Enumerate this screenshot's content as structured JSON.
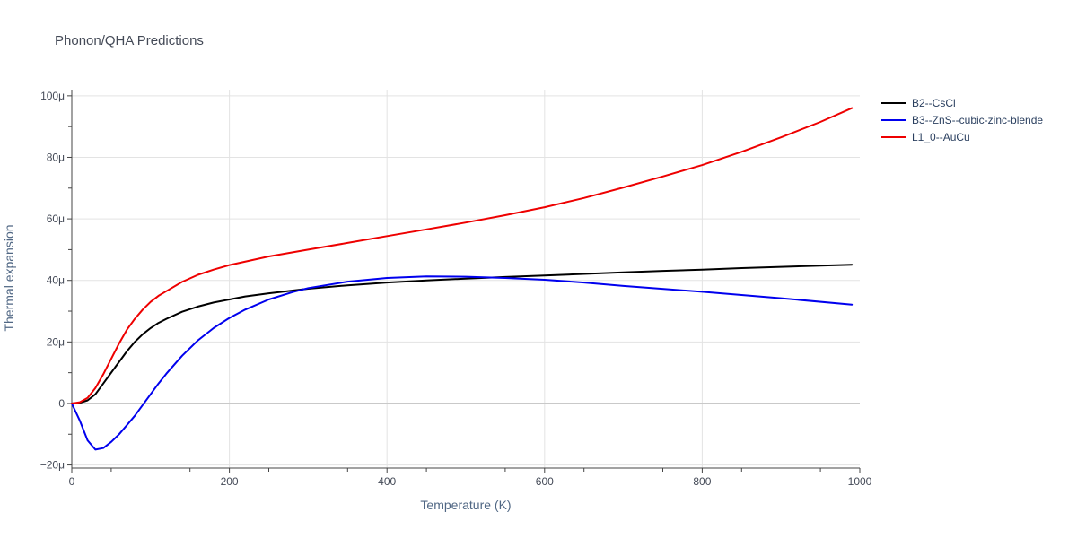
{
  "chart_data": {
    "type": "line",
    "title": "Phonon/QHA Predictions",
    "xlabel": "Temperature (K)",
    "ylabel": "Thermal expansion",
    "xlim": [
      0,
      1000
    ],
    "ylim": [
      -21,
      102
    ],
    "x_ticks": [
      0,
      200,
      400,
      600,
      800,
      1000
    ],
    "x_tick_labels": [
      "0",
      "200",
      "400",
      "600",
      "800",
      "1000"
    ],
    "y_ticks": [
      -20,
      0,
      20,
      40,
      60,
      80,
      100
    ],
    "y_tick_labels": [
      "−20μ",
      "0",
      "20μ",
      "40μ",
      "60μ",
      "80μ",
      "100μ"
    ],
    "grid": true,
    "legend_position": "top-right",
    "series": [
      {
        "name": "B2--CsCl",
        "color": "#000000",
        "x": [
          0,
          10,
          20,
          30,
          40,
          50,
          60,
          70,
          80,
          90,
          100,
          110,
          120,
          140,
          160,
          180,
          200,
          220,
          250,
          300,
          350,
          400,
          450,
          500,
          550,
          600,
          650,
          700,
          750,
          800,
          850,
          900,
          950,
          990
        ],
        "y": [
          0,
          0.2,
          1,
          3,
          6.5,
          10,
          13.5,
          17,
          20,
          22.5,
          24.5,
          26.2,
          27.5,
          29.8,
          31.5,
          32.8,
          33.8,
          34.8,
          35.8,
          37.3,
          38.4,
          39.3,
          40,
          40.6,
          41.1,
          41.6,
          42.1,
          42.6,
          43.1,
          43.5,
          44,
          44.4,
          44.8,
          45.1
        ]
      },
      {
        "name": "B3--ZnS--cubic-zinc-blende",
        "color": "#0000ee",
        "x": [
          0,
          10,
          20,
          30,
          40,
          50,
          60,
          70,
          80,
          90,
          100,
          110,
          120,
          140,
          160,
          180,
          200,
          220,
          250,
          280,
          300,
          350,
          400,
          450,
          500,
          550,
          600,
          650,
          700,
          800,
          900,
          990
        ],
        "y": [
          0,
          -5.5,
          -12,
          -15,
          -14.5,
          -12.5,
          -10,
          -7,
          -4,
          -0.5,
          3,
          6.5,
          9.7,
          15.5,
          20.5,
          24.5,
          27.8,
          30.5,
          33.8,
          36.2,
          37.5,
          39.6,
          40.8,
          41.3,
          41.2,
          40.8,
          40.2,
          39.3,
          38.2,
          36.3,
          34.2,
          32.1
        ]
      },
      {
        "name": "L1_0--AuCu",
        "color": "#ee0000",
        "x": [
          0,
          10,
          20,
          30,
          40,
          50,
          60,
          70,
          80,
          90,
          100,
          110,
          120,
          140,
          160,
          180,
          200,
          250,
          300,
          350,
          400,
          450,
          500,
          550,
          600,
          650,
          700,
          750,
          800,
          850,
          900,
          950,
          990
        ],
        "y": [
          0,
          0.4,
          1.8,
          5,
          9.5,
          14.5,
          19.5,
          24,
          27.5,
          30.5,
          33,
          35,
          36.5,
          39.5,
          41.8,
          43.5,
          45,
          47.8,
          50,
          52.2,
          54.4,
          56.6,
          58.8,
          61.2,
          63.8,
          66.8,
          70.2,
          73.8,
          77.5,
          81.8,
          86.5,
          91.5,
          96
        ]
      }
    ]
  }
}
